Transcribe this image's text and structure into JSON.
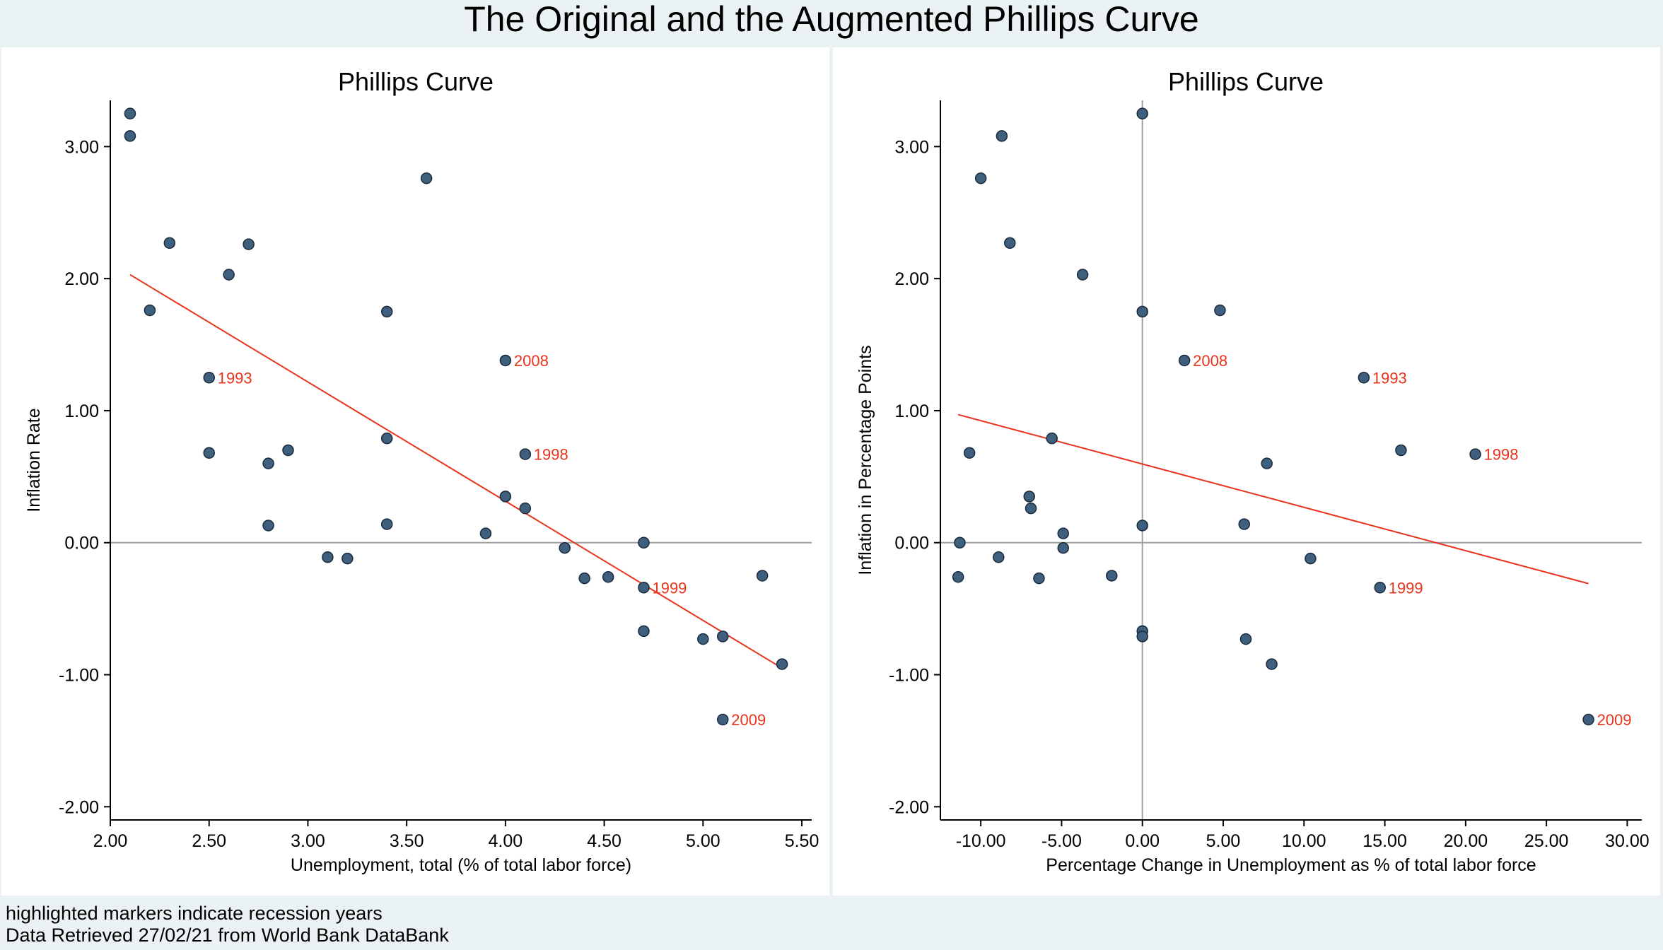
{
  "title": "The Original and the Augmented Phillips Curve",
  "notes": [
    "highlighted markers indicate recession years",
    "Data Retrieved 27/02/21 from World Bank DataBank"
  ],
  "colors": {
    "background": "#eaf2f3",
    "panel": "#ffffff",
    "marker_fill": "#3f5f7f",
    "marker_edge": "#1a2a3a",
    "fit_line": "#e8341c",
    "recession_label": "#e8341c",
    "zero_line": "#a0a0a0"
  },
  "chart_data": [
    {
      "type": "scatter",
      "title": "Phillips Curve",
      "xlabel": "Unemployment, total (% of total labor force)",
      "ylabel": "Inflation Rate",
      "xlim": [
        2.0,
        5.55
      ],
      "ylim": [
        -2.1,
        3.35
      ],
      "xticks": [
        2.0,
        2.5,
        3.0,
        3.5,
        4.0,
        4.5,
        5.0,
        5.5
      ],
      "xtick_labels": [
        "2.00",
        "2.50",
        "3.00",
        "3.50",
        "4.00",
        "4.50",
        "5.00",
        "5.50"
      ],
      "yticks": [
        -2,
        -1,
        0,
        1,
        2,
        3
      ],
      "ytick_labels": [
        "-2.00",
        "-1.00",
        "0.00",
        "1.00",
        "2.00",
        "3.00"
      ],
      "zero_line": "horizontal",
      "grid": false,
      "points": [
        {
          "x": 2.1,
          "y": 3.25,
          "label": ""
        },
        {
          "x": 2.1,
          "y": 3.08,
          "label": ""
        },
        {
          "x": 2.2,
          "y": 1.76,
          "label": ""
        },
        {
          "x": 2.3,
          "y": 2.27,
          "label": ""
        },
        {
          "x": 2.5,
          "y": 1.25,
          "label": "1993"
        },
        {
          "x": 2.5,
          "y": 0.68,
          "label": ""
        },
        {
          "x": 2.6,
          "y": 2.03,
          "label": ""
        },
        {
          "x": 2.7,
          "y": 2.26,
          "label": ""
        },
        {
          "x": 2.8,
          "y": 0.6,
          "label": ""
        },
        {
          "x": 2.8,
          "y": 0.13,
          "label": ""
        },
        {
          "x": 2.9,
          "y": 0.7,
          "label": ""
        },
        {
          "x": 3.1,
          "y": -0.11,
          "label": ""
        },
        {
          "x": 3.2,
          "y": -0.12,
          "label": ""
        },
        {
          "x": 3.4,
          "y": 1.75,
          "label": ""
        },
        {
          "x": 3.4,
          "y": 0.79,
          "label": ""
        },
        {
          "x": 3.4,
          "y": 0.14,
          "label": ""
        },
        {
          "x": 3.6,
          "y": 2.76,
          "label": ""
        },
        {
          "x": 3.9,
          "y": 0.07,
          "label": ""
        },
        {
          "x": 4.0,
          "y": 1.38,
          "label": "2008"
        },
        {
          "x": 4.0,
          "y": 0.35,
          "label": ""
        },
        {
          "x": 4.1,
          "y": 0.67,
          "label": "1998"
        },
        {
          "x": 4.1,
          "y": 0.26,
          "label": ""
        },
        {
          "x": 4.3,
          "y": -0.04,
          "label": ""
        },
        {
          "x": 4.4,
          "y": -0.27,
          "label": ""
        },
        {
          "x": 4.52,
          "y": -0.26,
          "label": ""
        },
        {
          "x": 4.7,
          "y": 0.0,
          "label": ""
        },
        {
          "x": 4.7,
          "y": -0.34,
          "label": "1999"
        },
        {
          "x": 4.7,
          "y": -0.67,
          "label": ""
        },
        {
          "x": 5.0,
          "y": -0.73,
          "label": ""
        },
        {
          "x": 5.1,
          "y": -0.71,
          "label": ""
        },
        {
          "x": 5.1,
          "y": -1.34,
          "label": "2009"
        },
        {
          "x": 5.3,
          "y": -0.25,
          "label": ""
        },
        {
          "x": 5.4,
          "y": -0.92,
          "label": ""
        }
      ],
      "fit_line": {
        "x": [
          2.1,
          5.4
        ],
        "y": [
          2.03,
          -0.95
        ]
      }
    },
    {
      "type": "scatter",
      "title": "Phillips Curve",
      "xlabel": "Percentage Change in Unemployment as % of total labor force",
      "ylabel": "Inflation in Percentage Points",
      "xlim": [
        -12.5,
        30.9
      ],
      "ylim": [
        -2.1,
        3.35
      ],
      "xticks": [
        -10,
        -5,
        0,
        5,
        10,
        15,
        20,
        25,
        30
      ],
      "xtick_labels": [
        "-10.00",
        "-5.00",
        "0.00",
        "5.00",
        "10.00",
        "15.00",
        "20.00",
        "25.00",
        "30.00"
      ],
      "yticks": [
        -2,
        -1,
        0,
        1,
        2,
        3
      ],
      "ytick_labels": [
        "-2.00",
        "-1.00",
        "0.00",
        "1.00",
        "2.00",
        "3.00"
      ],
      "zero_line": "both",
      "grid": false,
      "points": [
        {
          "x": 0.0,
          "y": 3.25,
          "label": ""
        },
        {
          "x": -8.7,
          "y": 3.08,
          "label": ""
        },
        {
          "x": -10.0,
          "y": 2.76,
          "label": ""
        },
        {
          "x": -8.2,
          "y": 2.27,
          "label": ""
        },
        {
          "x": -3.7,
          "y": 2.03,
          "label": ""
        },
        {
          "x": 0.0,
          "y": 1.75,
          "label": ""
        },
        {
          "x": 4.8,
          "y": 1.76,
          "label": ""
        },
        {
          "x": 2.6,
          "y": 1.38,
          "label": "2008"
        },
        {
          "x": 13.7,
          "y": 1.25,
          "label": "1993"
        },
        {
          "x": -5.6,
          "y": 0.79,
          "label": ""
        },
        {
          "x": -10.7,
          "y": 0.68,
          "label": ""
        },
        {
          "x": 16.0,
          "y": 0.7,
          "label": ""
        },
        {
          "x": 20.6,
          "y": 0.67,
          "label": "1998"
        },
        {
          "x": 7.7,
          "y": 0.6,
          "label": ""
        },
        {
          "x": -7.0,
          "y": 0.35,
          "label": ""
        },
        {
          "x": -6.9,
          "y": 0.26,
          "label": ""
        },
        {
          "x": -4.9,
          "y": 0.07,
          "label": ""
        },
        {
          "x": 0.0,
          "y": 0.13,
          "label": ""
        },
        {
          "x": 6.3,
          "y": 0.14,
          "label": ""
        },
        {
          "x": -11.3,
          "y": 0.0,
          "label": ""
        },
        {
          "x": -4.9,
          "y": -0.04,
          "label": ""
        },
        {
          "x": -8.9,
          "y": -0.11,
          "label": ""
        },
        {
          "x": 10.4,
          "y": -0.12,
          "label": ""
        },
        {
          "x": -11.4,
          "y": -0.26,
          "label": ""
        },
        {
          "x": -6.4,
          "y": -0.27,
          "label": ""
        },
        {
          "x": -1.9,
          "y": -0.25,
          "label": ""
        },
        {
          "x": 14.7,
          "y": -0.34,
          "label": "1999"
        },
        {
          "x": 0.0,
          "y": -0.67,
          "label": ""
        },
        {
          "x": 0.0,
          "y": -0.71,
          "label": ""
        },
        {
          "x": 6.4,
          "y": -0.73,
          "label": ""
        },
        {
          "x": 8.0,
          "y": -0.92,
          "label": ""
        },
        {
          "x": 27.6,
          "y": -1.34,
          "label": "2009"
        }
      ],
      "fit_line": {
        "x": [
          -11.4,
          27.6
        ],
        "y": [
          0.97,
          -0.31
        ]
      }
    }
  ]
}
